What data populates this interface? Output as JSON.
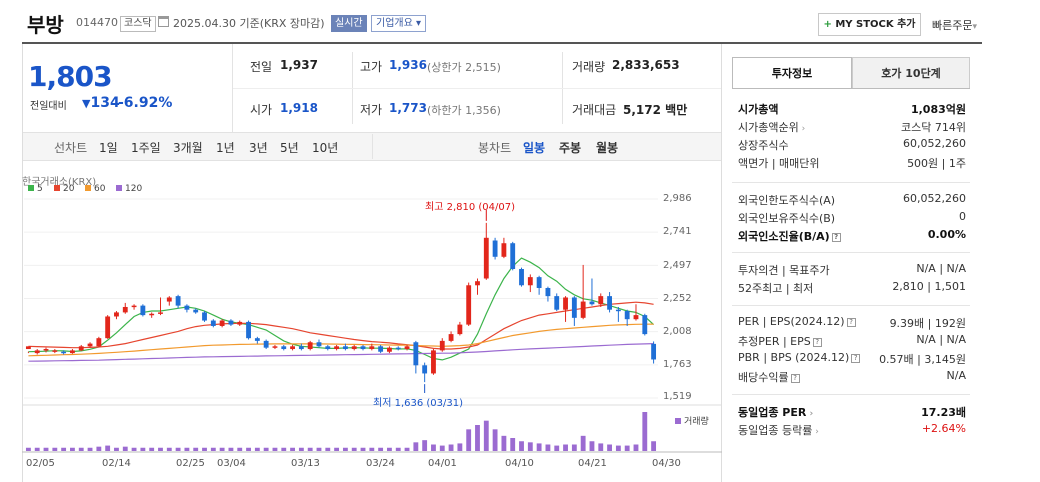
{
  "header": {
    "stock_name": "부방",
    "stock_code": "014470",
    "market_badge": "코스닥",
    "date_text": "2025.04.30 기준(KRX 장마감)",
    "realtime_badge": "실시간",
    "company_info_badge": "기업개요",
    "mystock_label": "MY STOCK 추가",
    "quick_order_label": "빠른주문"
  },
  "quote": {
    "price": "1,803",
    "change_label": "전일대비",
    "change_value": "134",
    "change_pct": "-6.92%",
    "prev_close_label": "전일",
    "prev_close": "1,937",
    "high_label": "고가",
    "high": "1,936",
    "upper_limit": "(상한가 2,515)",
    "volume_label": "거래량",
    "volume": "2,833,653",
    "open_label": "시가",
    "open": "1,918",
    "low_label": "저가",
    "low": "1,773",
    "lower_limit": "(하한가 1,356)",
    "amount_label": "거래대금",
    "amount": "5,172",
    "amount_unit": "백만"
  },
  "toolbar": {
    "line_chart_label": "선차트",
    "line_periods": [
      "1일",
      "1주일",
      "3개월",
      "1년",
      "3년",
      "5년",
      "10년"
    ],
    "candle_chart_label": "봉차트",
    "candle_periods": [
      "일봉",
      "주봉",
      "월봉"
    ],
    "active_candle": "일봉"
  },
  "chart_data": {
    "type": "candlestick",
    "source_label": "한국거래소(KRX)",
    "legend": [
      {
        "name": "5",
        "color": "#3cb44b"
      },
      {
        "name": "20",
        "color": "#e6452f"
      },
      {
        "name": "60",
        "color": "#f29a2e"
      },
      {
        "name": "120",
        "color": "#9b6bd1"
      }
    ],
    "y_ticks": [
      "2,986",
      "2,741",
      "2,497",
      "2,252",
      "2,008",
      "1,763",
      "1,519"
    ],
    "ylim": [
      1519,
      2986
    ],
    "x_ticks": [
      "02/05",
      "02/14",
      "02/25",
      "03/04",
      "03/13",
      "03/24",
      "04/01",
      "04/10",
      "04/21",
      "04/30"
    ],
    "annotations": {
      "high": "최고 2,810 (04/07)",
      "low": "최저 1,636 (03/31)"
    },
    "volume_label": "거래량",
    "candles": [
      [
        1880,
        1900,
        1860,
        1850
      ],
      [
        1850,
        1870,
        1880,
        1840
      ],
      [
        1870,
        1880,
        1890,
        1855
      ],
      [
        1860,
        1870,
        1880,
        1850
      ],
      [
        1860,
        1850,
        1870,
        1840
      ],
      [
        1850,
        1870,
        1880,
        1845
      ],
      [
        1870,
        1900,
        1910,
        1865
      ],
      [
        1900,
        1920,
        1930,
        1890
      ],
      [
        1900,
        1960,
        1970,
        1895
      ],
      [
        1960,
        2120,
        2130,
        1955
      ],
      [
        2120,
        2150,
        2160,
        2100
      ],
      [
        2150,
        2190,
        2220,
        2140
      ],
      [
        2190,
        2200,
        2210,
        2170
      ],
      [
        2200,
        2130,
        2210,
        2120
      ],
      [
        2130,
        2140,
        2150,
        2110
      ],
      [
        2140,
        2150,
        2260,
        2130
      ],
      [
        2230,
        2260,
        2270,
        2200
      ],
      [
        2270,
        2200,
        2280,
        2180
      ],
      [
        2200,
        2170,
        2210,
        2150
      ],
      [
        2170,
        2150,
        2180,
        2140
      ],
      [
        2150,
        2090,
        2160,
        2080
      ],
      [
        2090,
        2050,
        2100,
        2040
      ],
      [
        2050,
        2090,
        2100,
        2040
      ],
      [
        2090,
        2060,
        2100,
        2050
      ],
      [
        2060,
        2080,
        2090,
        2050
      ],
      [
        2080,
        1960,
        2090,
        1950
      ],
      [
        1960,
        1940,
        1970,
        1920
      ],
      [
        1940,
        1890,
        1950,
        1880
      ],
      [
        1890,
        1900,
        1910,
        1880
      ],
      [
        1900,
        1880,
        1910,
        1870
      ],
      [
        1880,
        1900,
        1910,
        1870
      ],
      [
        1900,
        1880,
        1920,
        1870
      ],
      [
        1880,
        1930,
        1940,
        1870
      ],
      [
        1930,
        1900,
        1950,
        1890
      ],
      [
        1900,
        1880,
        1910,
        1870
      ],
      [
        1880,
        1900,
        1910,
        1870
      ],
      [
        1900,
        1880,
        1920,
        1870
      ],
      [
        1880,
        1900,
        1910,
        1870
      ],
      [
        1900,
        1880,
        1910,
        1870
      ],
      [
        1880,
        1900,
        1920,
        1870
      ],
      [
        1900,
        1860,
        1910,
        1850
      ],
      [
        1860,
        1890,
        1900,
        1850
      ],
      [
        1890,
        1880,
        1900,
        1870
      ],
      [
        1880,
        1900,
        1910,
        1870
      ],
      [
        1930,
        1760,
        1940,
        1700
      ],
      [
        1760,
        1700,
        1780,
        1636
      ],
      [
        1700,
        1870,
        1880,
        1690
      ],
      [
        1870,
        1940,
        1960,
        1860
      ],
      [
        1940,
        1990,
        2010,
        1930
      ],
      [
        1990,
        2060,
        2080,
        1980
      ],
      [
        2060,
        2350,
        2370,
        2050
      ],
      [
        2350,
        2380,
        2400,
        2280
      ],
      [
        2400,
        2700,
        2810,
        2390
      ],
      [
        2680,
        2560,
        2700,
        2540
      ],
      [
        2560,
        2660,
        2700,
        2550
      ],
      [
        2660,
        2470,
        2670,
        2460
      ],
      [
        2470,
        2350,
        2480,
        2340
      ],
      [
        2350,
        2410,
        2430,
        2300
      ],
      [
        2410,
        2330,
        2420,
        2280
      ],
      [
        2330,
        2270,
        2340,
        2230
      ],
      [
        2270,
        2170,
        2290,
        2160
      ],
      [
        2170,
        2260,
        2270,
        2080
      ],
      [
        2260,
        2110,
        2270,
        2050
      ],
      [
        2110,
        2230,
        2500,
        2100
      ],
      [
        2230,
        2210,
        2400,
        2200
      ],
      [
        2210,
        2270,
        2290,
        2190
      ],
      [
        2270,
        2170,
        2300,
        2150
      ],
      [
        2170,
        2160,
        2190,
        2080
      ],
      [
        2160,
        2100,
        2170,
        2050
      ],
      [
        2100,
        2130,
        2210,
        2090
      ],
      [
        2130,
        1990,
        2140,
        1980
      ],
      [
        1918,
        1803,
        1936,
        1773
      ]
    ],
    "ma": {
      "5": [
        1860,
        1862,
        1864,
        1868,
        1866,
        1862,
        1866,
        1878,
        1896,
        1946,
        2000,
        2060,
        2120,
        2150,
        2160,
        2160,
        2170,
        2180,
        2190,
        2180,
        2160,
        2130,
        2100,
        2080,
        2070,
        2060,
        2040,
        2020,
        1980,
        1940,
        1915,
        1900,
        1895,
        1890,
        1885,
        1885,
        1888,
        1890,
        1888,
        1886,
        1886,
        1884,
        1880,
        1882,
        1870,
        1840,
        1810,
        1800,
        1820,
        1850,
        1880,
        1990,
        2140,
        2280,
        2400,
        2490,
        2550,
        2520,
        2480,
        2420,
        2380,
        2320,
        2280,
        2250,
        2240,
        2220,
        2200,
        2180,
        2160,
        2150,
        2120,
        2060
      ],
      "20": [
        1900,
        1898,
        1896,
        1894,
        1892,
        1890,
        1890,
        1892,
        1895,
        1900,
        1910,
        1920,
        1935,
        1950,
        1965,
        1980,
        1995,
        2010,
        2030,
        2045,
        2055,
        2060,
        2065,
        2068,
        2070,
        2070,
        2065,
        2060,
        2050,
        2040,
        2030,
        2015,
        2000,
        1990,
        1980,
        1970,
        1960,
        1950,
        1942,
        1935,
        1930,
        1925,
        1918,
        1912,
        1905,
        1895,
        1885,
        1880,
        1880,
        1885,
        1895,
        1910,
        1950,
        1990,
        2030,
        2060,
        2090,
        2110,
        2130,
        2140,
        2150,
        2160,
        2170,
        2180,
        2190,
        2200,
        2210,
        2215,
        2220,
        2225,
        2220,
        2210
      ],
      "60": [
        1830,
        1832,
        1834,
        1836,
        1838,
        1840,
        1842,
        1845,
        1848,
        1852,
        1856,
        1860,
        1865,
        1870,
        1875,
        1880,
        1885,
        1890,
        1895,
        1900,
        1905,
        1908,
        1910,
        1912,
        1914,
        1915,
        1916,
        1917,
        1918,
        1918,
        1918,
        1918,
        1918,
        1918,
        1917,
        1916,
        1915,
        1914,
        1913,
        1912,
        1911,
        1910,
        1909,
        1908,
        1906,
        1904,
        1902,
        1900,
        1902,
        1905,
        1910,
        1920,
        1935,
        1950,
        1965,
        1980,
        1990,
        2000,
        2010,
        2018,
        2025,
        2030,
        2035,
        2040,
        2045,
        2050,
        2055,
        2058,
        2060,
        2062,
        2063,
        2064
      ],
      "120": [
        1790,
        1791,
        1792,
        1793,
        1794,
        1795,
        1796,
        1797,
        1798,
        1800,
        1802,
        1804,
        1806,
        1808,
        1810,
        1812,
        1814,
        1816,
        1818,
        1820,
        1822,
        1823,
        1824,
        1825,
        1826,
        1827,
        1828,
        1829,
        1830,
        1831,
        1832,
        1833,
        1834,
        1835,
        1836,
        1837,
        1838,
        1839,
        1840,
        1841,
        1842,
        1843,
        1844,
        1845,
        1846,
        1847,
        1848,
        1849,
        1850,
        1852,
        1855,
        1858,
        1862,
        1866,
        1870,
        1874,
        1878,
        1881,
        1884,
        1887,
        1890,
        1893,
        1896,
        1899,
        1902,
        1905,
        1908,
        1911,
        1914,
        1916,
        1918,
        1920
      ]
    },
    "volumes": [
      3,
      3,
      3,
      3,
      3,
      3,
      3,
      3,
      4,
      5,
      3,
      4,
      3,
      3,
      3,
      3,
      3,
      3,
      3,
      3,
      3,
      3,
      3,
      3,
      3,
      3,
      3,
      3,
      3,
      3,
      3,
      3,
      3,
      3,
      3,
      3,
      3,
      3,
      3,
      3,
      3,
      3,
      3,
      3,
      8,
      10,
      6,
      5,
      6,
      7,
      20,
      24,
      28,
      20,
      14,
      12,
      9,
      8,
      7,
      6,
      5,
      6,
      6,
      14,
      9,
      7,
      6,
      5,
      5,
      6,
      36,
      9
    ]
  },
  "right_panel": {
    "tab_active": "투자정보",
    "tab_inactive": "호가 10단계",
    "group1": [
      {
        "label": "시가총액",
        "value": "1,083억원",
        "bold": true
      },
      {
        "label": "시가총액순위",
        "value": "코스닥 714위",
        "arrow": true
      },
      {
        "label": "상장주식수",
        "value": "60,052,260"
      },
      {
        "label": "액면가 | 매매단위",
        "value": "500원 | 1주"
      }
    ],
    "group2": [
      {
        "label": "외국인한도주식수(A)",
        "value": "60,052,260"
      },
      {
        "label": "외국인보유주식수(B)",
        "value": "0"
      },
      {
        "label": "외국인소진율(B/A)",
        "value": "0.00%",
        "bold": true,
        "q": true
      }
    ],
    "group3": [
      {
        "label": "투자의견 | 목표주가",
        "value": "N/A | N/A"
      },
      {
        "label": "52주최고 | 최저",
        "value": "2,810 | 1,501"
      }
    ],
    "group4": [
      {
        "label": "PER | EPS(2024.12)",
        "value": "9.39배 | 192원",
        "q": true
      },
      {
        "label": "추정PER | EPS",
        "value": "N/A | N/A",
        "q": true
      },
      {
        "label": "PBR | BPS (2024.12)",
        "value": "0.57배 | 3,145원",
        "q": true
      },
      {
        "label": "배당수익률",
        "value": "N/A",
        "q": true
      }
    ],
    "group5": [
      {
        "label": "동일업종 PER",
        "value": "17.23배",
        "bold": true,
        "arrow": true
      },
      {
        "label": "동일업종 등락률",
        "value": "+2.64%",
        "red": true,
        "arrow": true
      }
    ]
  }
}
